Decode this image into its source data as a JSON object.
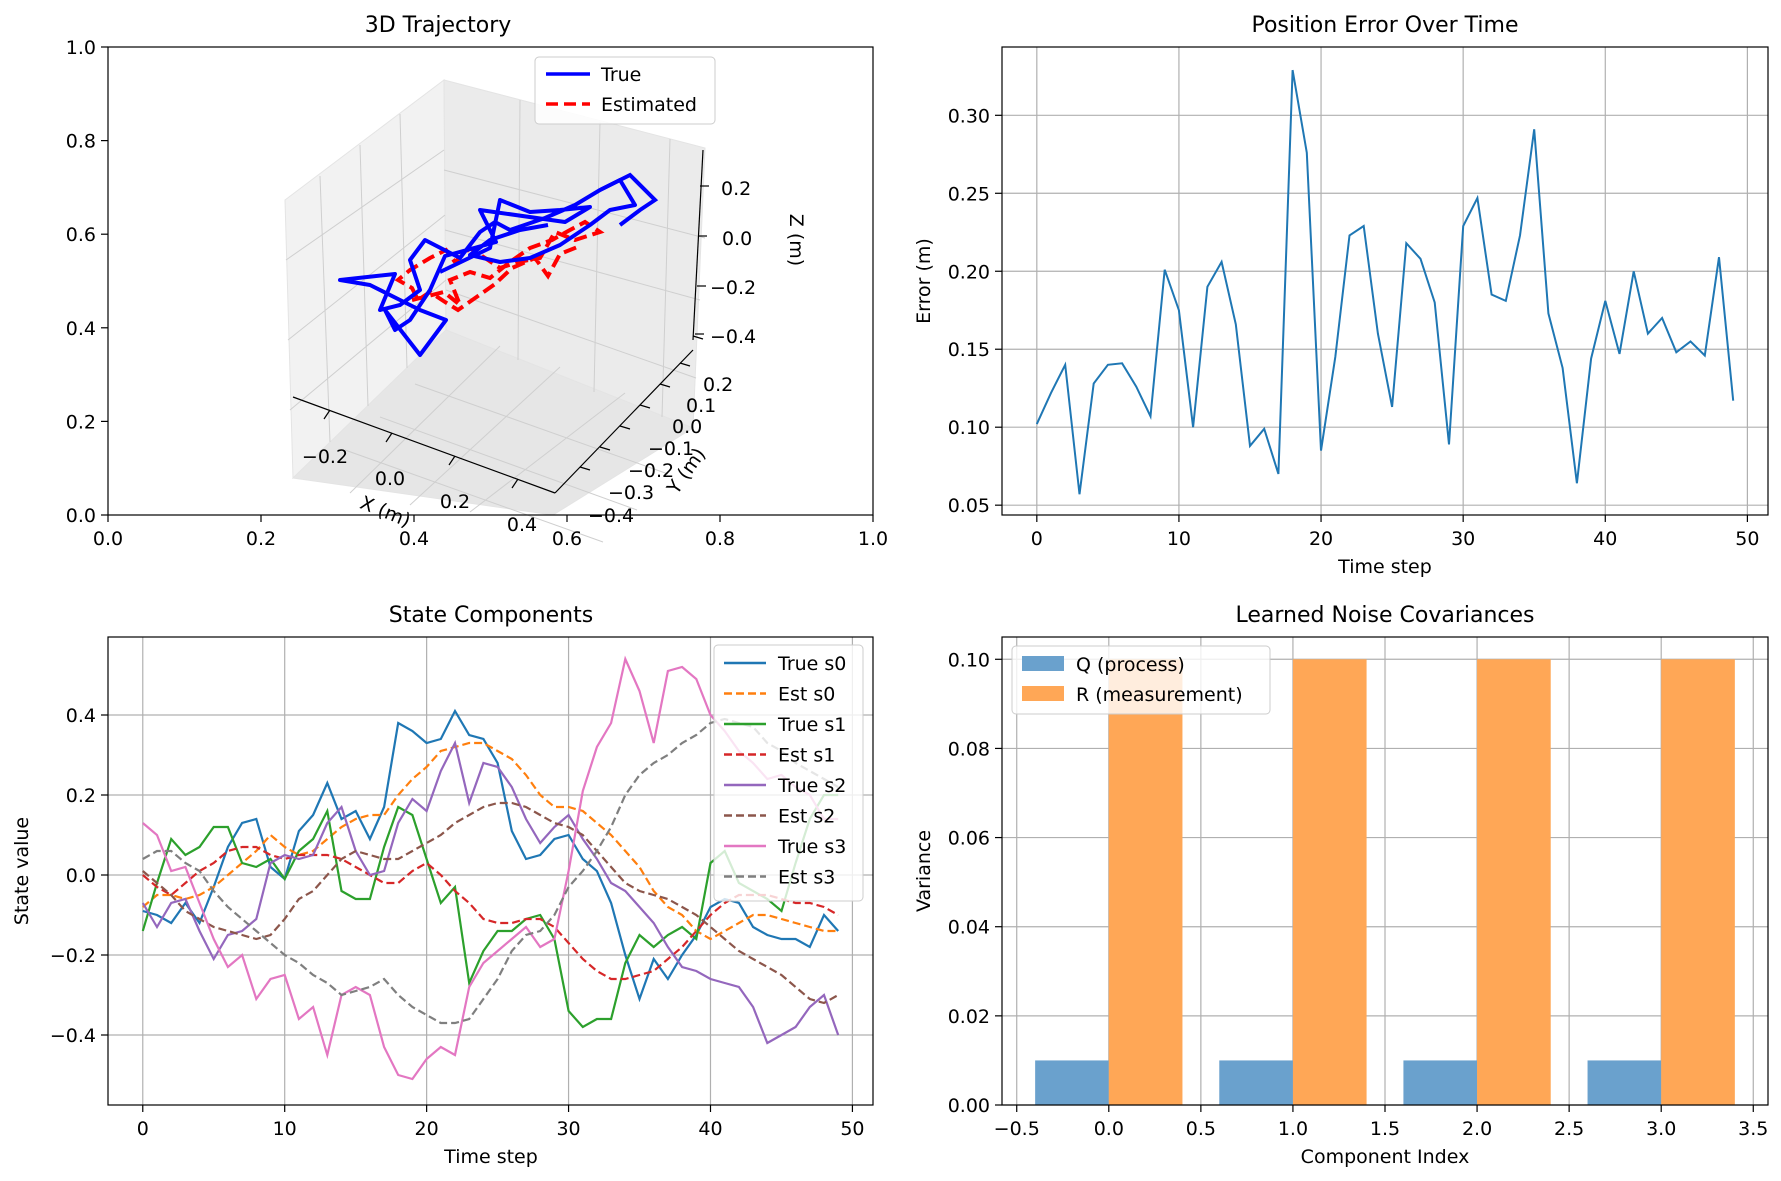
{
  "chart_data": [
    {
      "type": "line3d",
      "title": "3D Trajectory",
      "xlabel": "X (m)",
      "ylabel": "Y (m)",
      "zlabel": "Z (m)",
      "frame": {
        "xlim": [
          0.0,
          1.0
        ],
        "ylim": [
          0.0,
          1.0
        ],
        "xticks": [
          "0.0",
          "0.2",
          "0.4",
          "0.6",
          "0.8",
          "1.0"
        ],
        "yticks": [
          "0.0",
          "0.2",
          "0.4",
          "0.6",
          "0.8",
          "1.0"
        ]
      },
      "xticks": [
        "−0.2",
        "0.0",
        "0.2",
        "0.4"
      ],
      "yticks": [
        "−0.4",
        "−0.3",
        "−0.2",
        "−0.1",
        "0.0",
        "0.1",
        "0.2"
      ],
      "zticks": [
        "−0.4",
        "−0.2",
        "0.0",
        "0.2"
      ],
      "legend": {
        "placement": "upper right",
        "entries": [
          "True",
          "Estimated"
        ]
      },
      "series_colors": [
        "#0000ff",
        "#ff0000"
      ]
    },
    {
      "type": "line",
      "title": "Position Error Over Time",
      "xlabel": "Time step",
      "ylabel": "Error (m)",
      "xlim": [
        -2.45,
        51.45
      ],
      "ylim": [
        0.0437,
        0.3438
      ],
      "xticks": [
        0,
        10,
        20,
        30,
        40,
        50
      ],
      "yticks": [
        "0.05",
        "0.10",
        "0.15",
        "0.20",
        "0.25",
        "0.30"
      ],
      "grid": true,
      "color": "#1f77b4",
      "x": [
        0,
        1,
        2,
        3,
        4,
        5,
        6,
        7,
        8,
        9,
        10,
        11,
        12,
        13,
        14,
        15,
        16,
        17,
        18,
        19,
        20,
        21,
        22,
        23,
        24,
        25,
        26,
        27,
        28,
        29,
        30,
        31,
        32,
        33,
        34,
        35,
        36,
        37,
        38,
        39,
        40,
        41,
        42,
        43,
        44,
        45,
        46,
        47,
        48,
        49
      ],
      "values": [
        0.102,
        0.122,
        0.14,
        0.057,
        0.128,
        0.14,
        0.141,
        0.126,
        0.107,
        0.201,
        0.175,
        0.1,
        0.19,
        0.206,
        0.166,
        0.088,
        0.099,
        0.07,
        0.329,
        0.276,
        0.085,
        0.145,
        0.223,
        0.229,
        0.16,
        0.113,
        0.218,
        0.208,
        0.18,
        0.089,
        0.229,
        0.247,
        0.185,
        0.181,
        0.223,
        0.291,
        0.173,
        0.138,
        0.064,
        0.144,
        0.181,
        0.147,
        0.2,
        0.16,
        0.17,
        0.148,
        0.155,
        0.146,
        0.209,
        0.117
      ]
    },
    {
      "type": "line",
      "title": "State Components",
      "xlabel": "Time step",
      "ylabel": "State value",
      "xlim": [
        -2.45,
        51.45
      ],
      "ylim": [
        -0.575,
        0.595
      ],
      "xticks": [
        0,
        10,
        20,
        30,
        40,
        50
      ],
      "yticks": [
        "−0.4",
        "−0.2",
        "0.0",
        "0.2",
        "0.4"
      ],
      "ytick_values": [
        -0.4,
        -0.2,
        0.0,
        0.2,
        0.4
      ],
      "grid": true,
      "legend": {
        "placement": "upper right"
      },
      "x": [
        0,
        1,
        2,
        3,
        4,
        5,
        6,
        7,
        8,
        9,
        10,
        11,
        12,
        13,
        14,
        15,
        16,
        17,
        18,
        19,
        20,
        21,
        22,
        23,
        24,
        25,
        26,
        27,
        28,
        29,
        30,
        31,
        32,
        33,
        34,
        35,
        36,
        37,
        38,
        39,
        40,
        41,
        42,
        43,
        44,
        45,
        46,
        47,
        48,
        49
      ],
      "series": [
        {
          "name": "True s0",
          "color": "#1f77b4",
          "dash": false,
          "values": [
            -0.09,
            -0.1,
            -0.12,
            -0.07,
            -0.12,
            -0.03,
            0.07,
            0.13,
            0.14,
            0.02,
            -0.01,
            0.11,
            0.15,
            0.23,
            0.14,
            0.16,
            0.09,
            0.17,
            0.38,
            0.36,
            0.33,
            0.34,
            0.41,
            0.35,
            0.34,
            0.28,
            0.11,
            0.04,
            0.05,
            0.09,
            0.1,
            0.04,
            0.01,
            -0.07,
            -0.2,
            -0.31,
            -0.21,
            -0.26,
            -0.2,
            -0.15,
            -0.08,
            -0.06,
            -0.07,
            -0.13,
            -0.15,
            -0.16,
            -0.16,
            -0.18,
            -0.1,
            -0.14
          ]
        },
        {
          "name": "Est s0",
          "color": "#ff7f0e",
          "dash": true,
          "values": [
            -0.08,
            -0.05,
            -0.05,
            -0.06,
            -0.05,
            -0.03,
            0.0,
            0.03,
            0.06,
            0.1,
            0.07,
            0.05,
            0.06,
            0.09,
            0.12,
            0.14,
            0.15,
            0.15,
            0.2,
            0.24,
            0.27,
            0.31,
            0.32,
            0.33,
            0.33,
            0.31,
            0.29,
            0.25,
            0.2,
            0.17,
            0.17,
            0.16,
            0.13,
            0.1,
            0.06,
            0.02,
            -0.04,
            -0.08,
            -0.1,
            -0.14,
            -0.16,
            -0.14,
            -0.12,
            -0.1,
            -0.1,
            -0.11,
            -0.12,
            -0.13,
            -0.14,
            -0.14
          ]
        },
        {
          "name": "True s1",
          "color": "#2ca02c",
          "dash": false,
          "values": [
            -0.14,
            -0.02,
            0.09,
            0.05,
            0.07,
            0.12,
            0.12,
            0.03,
            0.02,
            0.04,
            -0.01,
            0.06,
            0.09,
            0.16,
            -0.04,
            -0.06,
            -0.06,
            0.07,
            0.17,
            0.15,
            0.04,
            -0.07,
            -0.03,
            -0.27,
            -0.19,
            -0.14,
            -0.14,
            -0.11,
            -0.1,
            -0.16,
            -0.34,
            -0.38,
            -0.36,
            -0.36,
            -0.22,
            -0.15,
            -0.18,
            -0.15,
            -0.13,
            -0.16,
            0.03,
            0.06,
            -0.02,
            -0.04,
            -0.06,
            -0.09,
            0.03,
            0.14,
            0.2,
            0.2
          ]
        },
        {
          "name": "Est s1",
          "color": "#d62728",
          "dash": true,
          "values": [
            0.0,
            -0.03,
            -0.05,
            -0.02,
            0.01,
            0.03,
            0.06,
            0.07,
            0.07,
            0.05,
            0.04,
            0.05,
            0.05,
            0.05,
            0.04,
            0.02,
            0.0,
            -0.02,
            -0.02,
            0.01,
            0.03,
            0.0,
            -0.04,
            -0.07,
            -0.11,
            -0.12,
            -0.12,
            -0.11,
            -0.11,
            -0.13,
            -0.17,
            -0.21,
            -0.24,
            -0.26,
            -0.26,
            -0.25,
            -0.24,
            -0.21,
            -0.18,
            -0.14,
            -0.1,
            -0.07,
            -0.05,
            -0.05,
            -0.05,
            -0.06,
            -0.07,
            -0.07,
            -0.08,
            -0.1
          ]
        },
        {
          "name": "True s2",
          "color": "#9467bd",
          "dash": false,
          "values": [
            -0.07,
            -0.13,
            -0.07,
            -0.06,
            -0.14,
            -0.21,
            -0.15,
            -0.14,
            -0.11,
            0.03,
            0.05,
            0.04,
            0.05,
            0.13,
            0.17,
            0.06,
            0.0,
            0.01,
            0.13,
            0.19,
            0.16,
            0.26,
            0.33,
            0.18,
            0.28,
            0.27,
            0.22,
            0.14,
            0.08,
            0.12,
            0.15,
            0.09,
            0.04,
            -0.02,
            -0.04,
            -0.08,
            -0.12,
            -0.18,
            -0.23,
            -0.24,
            -0.26,
            -0.27,
            -0.28,
            -0.33,
            -0.42,
            -0.4,
            -0.38,
            -0.33,
            -0.3,
            -0.4
          ]
        },
        {
          "name": "Est s2",
          "color": "#8c564b",
          "dash": true,
          "values": [
            0.01,
            -0.02,
            -0.05,
            -0.09,
            -0.11,
            -0.13,
            -0.14,
            -0.15,
            -0.16,
            -0.15,
            -0.11,
            -0.06,
            -0.04,
            0.0,
            0.04,
            0.06,
            0.05,
            0.04,
            0.04,
            0.06,
            0.08,
            0.1,
            0.13,
            0.15,
            0.17,
            0.18,
            0.18,
            0.17,
            0.15,
            0.13,
            0.12,
            0.1,
            0.06,
            0.02,
            -0.02,
            -0.04,
            -0.05,
            -0.06,
            -0.08,
            -0.1,
            -0.13,
            -0.16,
            -0.19,
            -0.21,
            -0.23,
            -0.25,
            -0.28,
            -0.31,
            -0.32,
            -0.3
          ]
        },
        {
          "name": "True s3",
          "color": "#e377c2",
          "dash": false,
          "values": [
            0.13,
            0.1,
            0.01,
            0.02,
            -0.07,
            -0.16,
            -0.23,
            -0.2,
            -0.31,
            -0.26,
            -0.25,
            -0.36,
            -0.33,
            -0.45,
            -0.3,
            -0.28,
            -0.3,
            -0.43,
            -0.5,
            -0.51,
            -0.46,
            -0.43,
            -0.45,
            -0.28,
            -0.22,
            -0.19,
            -0.16,
            -0.13,
            -0.18,
            -0.16,
            0.01,
            0.21,
            0.32,
            0.38,
            0.54,
            0.46,
            0.33,
            0.51,
            0.52,
            0.49,
            0.4,
            0.36,
            0.31,
            0.28,
            0.24,
            0.25,
            0.22,
            0.2,
            0.14,
            0.14
          ]
        },
        {
          "name": "Est s3",
          "color": "#7f7f7f",
          "dash": true,
          "values": [
            0.04,
            0.06,
            0.06,
            0.03,
            0.01,
            -0.04,
            -0.08,
            -0.11,
            -0.14,
            -0.17,
            -0.2,
            -0.22,
            -0.25,
            -0.27,
            -0.3,
            -0.29,
            -0.28,
            -0.26,
            -0.3,
            -0.33,
            -0.35,
            -0.37,
            -0.37,
            -0.36,
            -0.31,
            -0.26,
            -0.19,
            -0.15,
            -0.14,
            -0.1,
            -0.03,
            0.01,
            0.06,
            0.12,
            0.2,
            0.25,
            0.28,
            0.3,
            0.33,
            0.35,
            0.38,
            0.39,
            0.38,
            0.37,
            0.33,
            0.31,
            0.28,
            0.26,
            0.24,
            0.22
          ]
        }
      ]
    },
    {
      "type": "bar",
      "title": "Learned Noise Covariances",
      "xlabel": "Component Index",
      "ylabel": "Variance",
      "xlim": [
        -0.58,
        3.58
      ],
      "ylim": [
        0.0,
        0.105
      ],
      "xticks": [
        "−0.5",
        "0.0",
        "0.5",
        "1.0",
        "1.5",
        "2.0",
        "2.5",
        "3.0",
        "3.5"
      ],
      "xtick_values": [
        -0.5,
        0.0,
        0.5,
        1.0,
        1.5,
        2.0,
        2.5,
        3.0,
        3.5
      ],
      "yticks": [
        "0.00",
        "0.02",
        "0.04",
        "0.06",
        "0.08",
        "0.10"
      ],
      "ytick_values": [
        0.0,
        0.02,
        0.04,
        0.06,
        0.08,
        0.1
      ],
      "grid": true,
      "legend": {
        "placement": "upper left"
      },
      "categories": [
        0,
        1,
        2,
        3
      ],
      "bar_width": 0.4,
      "series": [
        {
          "name": "Q (process)",
          "color": "#6aa1cd",
          "values": [
            0.01,
            0.01,
            0.01,
            0.01
          ]
        },
        {
          "name": "R (measurement)",
          "color": "#ffa756",
          "values": [
            0.1,
            0.1,
            0.1,
            0.1
          ]
        }
      ]
    }
  ]
}
